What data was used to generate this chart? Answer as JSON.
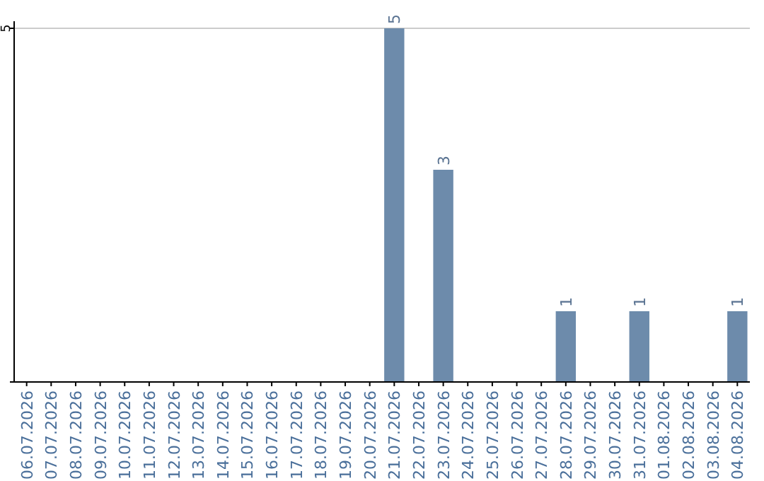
{
  "chart_data": {
    "type": "bar",
    "categories": [
      "06.07.2026",
      "07.07.2026",
      "08.07.2026",
      "09.07.2026",
      "10.07.2026",
      "11.07.2026",
      "12.07.2026",
      "13.07.2026",
      "14.07.2026",
      "15.07.2026",
      "16.07.2026",
      "17.07.2026",
      "18.07.2026",
      "19.07.2026",
      "20.07.2026",
      "21.07.2026",
      "22.07.2026",
      "23.07.2026",
      "24.07.2026",
      "25.07.2026",
      "26.07.2026",
      "27.07.2026",
      "28.07.2026",
      "29.07.2026",
      "30.07.2026",
      "31.07.2026",
      "01.08.2026",
      "02.08.2026",
      "03.08.2026",
      "04.08.2026"
    ],
    "values": [
      null,
      null,
      null,
      null,
      null,
      null,
      null,
      null,
      null,
      null,
      null,
      null,
      null,
      null,
      null,
      5,
      null,
      3,
      null,
      null,
      null,
      null,
      1,
      null,
      null,
      1,
      null,
      null,
      null,
      1
    ],
    "data_labels": true,
    "ylim": [
      0,
      5
    ],
    "yticks": [
      {
        "value": 0,
        "label": null
      },
      5
    ],
    "color": "#6d8bab",
    "ref_lines": [
      {
        "axis": "y",
        "value": 5,
        "color": "#cccccc"
      }
    ]
  }
}
